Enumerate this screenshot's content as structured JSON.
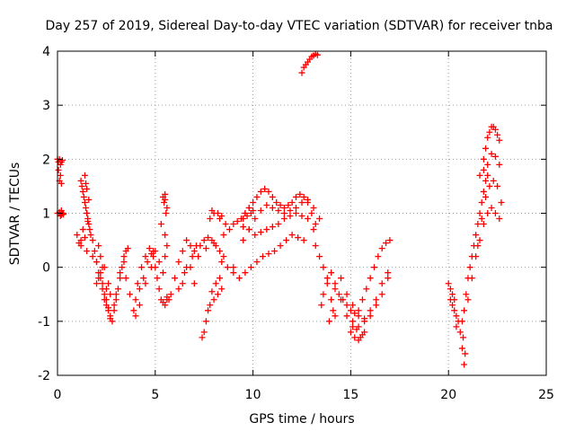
{
  "chart_data": {
    "type": "scatter",
    "title": "Day 257 of 2019, Sidereal Day-to-day VTEC variation (SDTVAR) for receiver tnba",
    "xlabel": "GPS time / hours",
    "ylabel": "SDTVAR / TECUs",
    "xlim": [
      0,
      25
    ],
    "ylim": [
      -2,
      4
    ],
    "xticks": [
      0,
      5,
      10,
      15,
      20,
      25
    ],
    "yticks": [
      -2,
      -1,
      0,
      1,
      2,
      3,
      4
    ],
    "grid": true,
    "marker": "+",
    "color": "#ff0000",
    "series": [
      {
        "name": "SDTVAR",
        "x": [
          0.0,
          0.05,
          0.1,
          0.15,
          0.2,
          0.25,
          0.05,
          0.1,
          0.15,
          0.2,
          0.1,
          0.15,
          0.2,
          0.25,
          0.3,
          0.0,
          0.1,
          0.2,
          0.3,
          1.0,
          1.2,
          1.5,
          1.8,
          2.0,
          1.2,
          1.3,
          1.1,
          1.4,
          1.2,
          1.25,
          1.3,
          1.35,
          1.4,
          1.45,
          1.5,
          1.55,
          1.6,
          1.65,
          1.7,
          1.4,
          1.5,
          1.6,
          1.5,
          1.45,
          1.55,
          1.8,
          1.9,
          2.0,
          2.1,
          2.2,
          2.3,
          2.4,
          2.5,
          2.6,
          2.7,
          2.8,
          2.2,
          2.4,
          2.6,
          2.3,
          2.5,
          2.7,
          2.1,
          2.9,
          3.0,
          3.1,
          3.2,
          3.3,
          3.4,
          3.5,
          3.6,
          3.2,
          3.4,
          3.0,
          2.0,
          2.1,
          2.2,
          2.3,
          2.5,
          2.7,
          2.9,
          2.4,
          2.6,
          3.5,
          3.7,
          3.9,
          4.0,
          4.1,
          4.3,
          4.5,
          4.7,
          4.9,
          4.2,
          4.4,
          4.6,
          4.8,
          4.0,
          4.2,
          4.5,
          4.8,
          4.9,
          5.0,
          5.1,
          5.2,
          5.3,
          5.4,
          5.5,
          5.6,
          5.0,
          5.2,
          5.4,
          5.5,
          5.6,
          5.3,
          5.5,
          5.4,
          5.5,
          5.6,
          5.5,
          5.45,
          5.55,
          5.6,
          5.7,
          5.8,
          6.0,
          6.2,
          6.4,
          6.6,
          6.8,
          7.0,
          7.2,
          6.5,
          6.8,
          7.0,
          6.2,
          6.4,
          6.6,
          6.9,
          7.1,
          7.4,
          7.5,
          7.6,
          7.7,
          7.8,
          8.0,
          8.2,
          8.4,
          7.9,
          8.1,
          8.3,
          7.3,
          7.5,
          7.7,
          7.9,
          8.1,
          8.3,
          8.5,
          7.6,
          8.0,
          8.4,
          8.7,
          9.0,
          7.8,
          8.0,
          8.2,
          8.4,
          8.6,
          7.9,
          8.3,
          8.5,
          8.8,
          9.0,
          9.2,
          9.4,
          9.6,
          9.8,
          10.0,
          9.5,
          9.7,
          9.9,
          9.6,
          9.8,
          10.0,
          10.2,
          10.4,
          10.6,
          10.8,
          11.0,
          11.2,
          11.4,
          11.6,
          11.8,
          12.0,
          12.2,
          12.4,
          12.6,
          12.8,
          13.0,
          13.2,
          9.5,
          9.8,
          10.1,
          10.4,
          10.7,
          11.0,
          11.3,
          11.6,
          11.9,
          12.2,
          12.5,
          12.8,
          13.1,
          13.4,
          9.5,
          9.8,
          10.1,
          10.4,
          10.7,
          11.0,
          11.3,
          11.6,
          11.9,
          12.2,
          12.5,
          12.8,
          13.1,
          9.0,
          9.3,
          9.6,
          9.9,
          10.2,
          10.5,
          10.8,
          11.1,
          11.4,
          11.7,
          12.0,
          12.3,
          12.6,
          12.5,
          12.6,
          12.7,
          12.8,
          12.9,
          13.0,
          13.1,
          13.2,
          13.3,
          13.2,
          13.4,
          13.6,
          13.8,
          14.0,
          14.2,
          13.5,
          13.9,
          14.1,
          13.6,
          13.8,
          14.0,
          14.2,
          14.4,
          14.6,
          14.8,
          15.0,
          15.2,
          15.4,
          15.6,
          15.8,
          16.0,
          16.2,
          16.4,
          16.6,
          16.8,
          17.0,
          14.2,
          14.5,
          14.8,
          15.1,
          15.4,
          15.7,
          16.0,
          16.3,
          16.6,
          16.9,
          14.5,
          14.8,
          15.1,
          15.4,
          15.7,
          16.0,
          16.3,
          16.6,
          16.9,
          15.0,
          15.2,
          15.4,
          15.6,
          15.3,
          15.5,
          15.1,
          15.7,
          20.0,
          20.1,
          20.2,
          20.3,
          20.4,
          20.5,
          20.2,
          20.3,
          20.4,
          20.1,
          20.6,
          20.7,
          20.8,
          20.9,
          21.0,
          21.1,
          21.2,
          21.3,
          21.4,
          21.5,
          21.6,
          21.7,
          21.8,
          21.9,
          22.0,
          21.0,
          21.2,
          21.4,
          21.6,
          21.8,
          22.0,
          22.2,
          22.4,
          22.6,
          21.5,
          21.7,
          21.9,
          22.1,
          22.3,
          22.5,
          22.7,
          21.8,
          21.9,
          22.0,
          22.1,
          22.2,
          22.3,
          22.4,
          22.5,
          22.6,
          22.0,
          22.2,
          22.4,
          22.6,
          21.6,
          21.8,
          20.7,
          20.8,
          20.75,
          20.85
        ],
        "y": [
          2.0,
          1.95,
          2.0,
          1.9,
          1.95,
          1.98,
          1.8,
          1.6,
          1.7,
          1.55,
          1.0,
          0.95,
          1.05,
          1.0,
          0.98,
          1.0,
          1.02,
          0.97,
          1.0,
          0.6,
          0.4,
          0.3,
          0.2,
          0.1,
          0.5,
          0.7,
          0.45,
          0.55,
          1.6,
          1.5,
          1.4,
          1.3,
          1.2,
          1.1,
          1.0,
          0.9,
          0.8,
          0.7,
          0.6,
          1.7,
          1.45,
          1.25,
          1.0,
          1.55,
          0.85,
          0.5,
          0.3,
          0.1,
          -0.1,
          -0.2,
          -0.3,
          -0.5,
          -0.6,
          -0.8,
          -0.9,
          -1.0,
          0.2,
          0.0,
          -0.3,
          -0.4,
          -0.7,
          -0.95,
          0.4,
          -0.8,
          -0.6,
          -0.4,
          -0.2,
          0.0,
          0.2,
          0.3,
          0.35,
          -0.1,
          0.1,
          -0.5,
          -0.3,
          -0.2,
          -0.1,
          0.0,
          -0.4,
          -0.5,
          -0.7,
          -0.6,
          -0.75,
          -0.2,
          -0.5,
          -0.8,
          -0.6,
          -0.3,
          0.0,
          0.2,
          0.35,
          0.3,
          -0.4,
          -0.2,
          0.1,
          0.25,
          -0.9,
          -0.7,
          -0.3,
          0.0,
          0.2,
          0.0,
          -0.2,
          -0.4,
          -0.6,
          -0.65,
          -0.7,
          -0.6,
          0.3,
          0.1,
          -0.1,
          0.6,
          0.4,
          0.8,
          0.2,
          1.3,
          1.25,
          1.1,
          1.35,
          1.2,
          1.0,
          -0.55,
          -0.6,
          -0.5,
          -0.2,
          0.1,
          0.3,
          0.5,
          0.4,
          0.3,
          0.2,
          -0.1,
          0.0,
          -0.3,
          -0.4,
          -0.3,
          0.0,
          0.2,
          0.4,
          -1.3,
          -1.2,
          -1.0,
          -0.8,
          -0.7,
          -0.6,
          -0.5,
          -0.4,
          -0.45,
          -0.3,
          -0.2,
          0.4,
          0.5,
          0.55,
          0.5,
          0.4,
          0.3,
          0.2,
          0.35,
          0.45,
          0.1,
          0.0,
          -0.1,
          0.9,
          1.0,
          1.0,
          0.95,
          0.8,
          1.05,
          0.9,
          0.6,
          0.7,
          0.8,
          0.85,
          0.9,
          1.0,
          1.1,
          1.05,
          0.75,
          0.95,
          1.0,
          1.0,
          1.1,
          1.2,
          1.3,
          1.4,
          1.45,
          1.4,
          1.3,
          1.2,
          1.15,
          1.1,
          1.15,
          1.2,
          1.3,
          1.35,
          1.3,
          1.2,
          1.0,
          0.8,
          0.5,
          0.7,
          0.9,
          1.05,
          1.15,
          1.1,
          1.05,
          1.0,
          1.05,
          1.1,
          1.2,
          1.25,
          1.1,
          0.9,
          0.9,
          0.7,
          0.6,
          0.65,
          0.7,
          0.75,
          0.8,
          0.9,
          0.95,
          1.0,
          0.95,
          0.9,
          0.7,
          0.0,
          -0.2,
          -0.1,
          0.0,
          0.1,
          0.2,
          0.25,
          0.3,
          0.4,
          0.5,
          0.6,
          0.55,
          0.5,
          3.6,
          3.7,
          3.75,
          3.8,
          3.85,
          3.9,
          3.92,
          3.95,
          3.93,
          0.4,
          0.2,
          0.0,
          -0.3,
          -0.6,
          -0.9,
          -0.7,
          -1.0,
          -0.8,
          -0.5,
          -0.2,
          -0.1,
          -0.3,
          -0.5,
          -0.6,
          -0.7,
          -0.8,
          -0.85,
          -0.8,
          -0.6,
          -0.4,
          -0.2,
          0.0,
          0.2,
          0.35,
          0.45,
          0.5,
          -0.4,
          -0.6,
          -0.9,
          -1.0,
          -1.1,
          -1.0,
          -0.8,
          -0.6,
          -0.3,
          -0.1,
          -0.2,
          -0.5,
          -0.7,
          -0.9,
          -0.95,
          -0.9,
          -0.7,
          -0.5,
          -0.2,
          -1.2,
          -1.3,
          -1.35,
          -1.25,
          -1.15,
          -1.3,
          -1.1,
          -1.2,
          -0.3,
          -0.4,
          -0.5,
          -0.8,
          -0.9,
          -1.0,
          -0.7,
          -0.6,
          -1.1,
          -0.6,
          -1.2,
          -1.0,
          -0.8,
          -0.5,
          -0.2,
          0.0,
          0.2,
          0.4,
          0.6,
          0.8,
          1.0,
          1.2,
          1.4,
          1.6,
          1.7,
          -0.6,
          -0.2,
          0.2,
          0.5,
          0.8,
          1.0,
          1.1,
          1.0,
          0.9,
          0.4,
          0.9,
          1.3,
          1.5,
          1.6,
          1.5,
          1.2,
          2.0,
          2.2,
          2.4,
          2.5,
          2.6,
          2.6,
          2.55,
          2.45,
          2.35,
          1.9,
          2.1,
          2.05,
          1.9,
          1.7,
          1.8,
          -1.5,
          -1.8,
          -1.3,
          -1.6
        ]
      }
    ]
  }
}
